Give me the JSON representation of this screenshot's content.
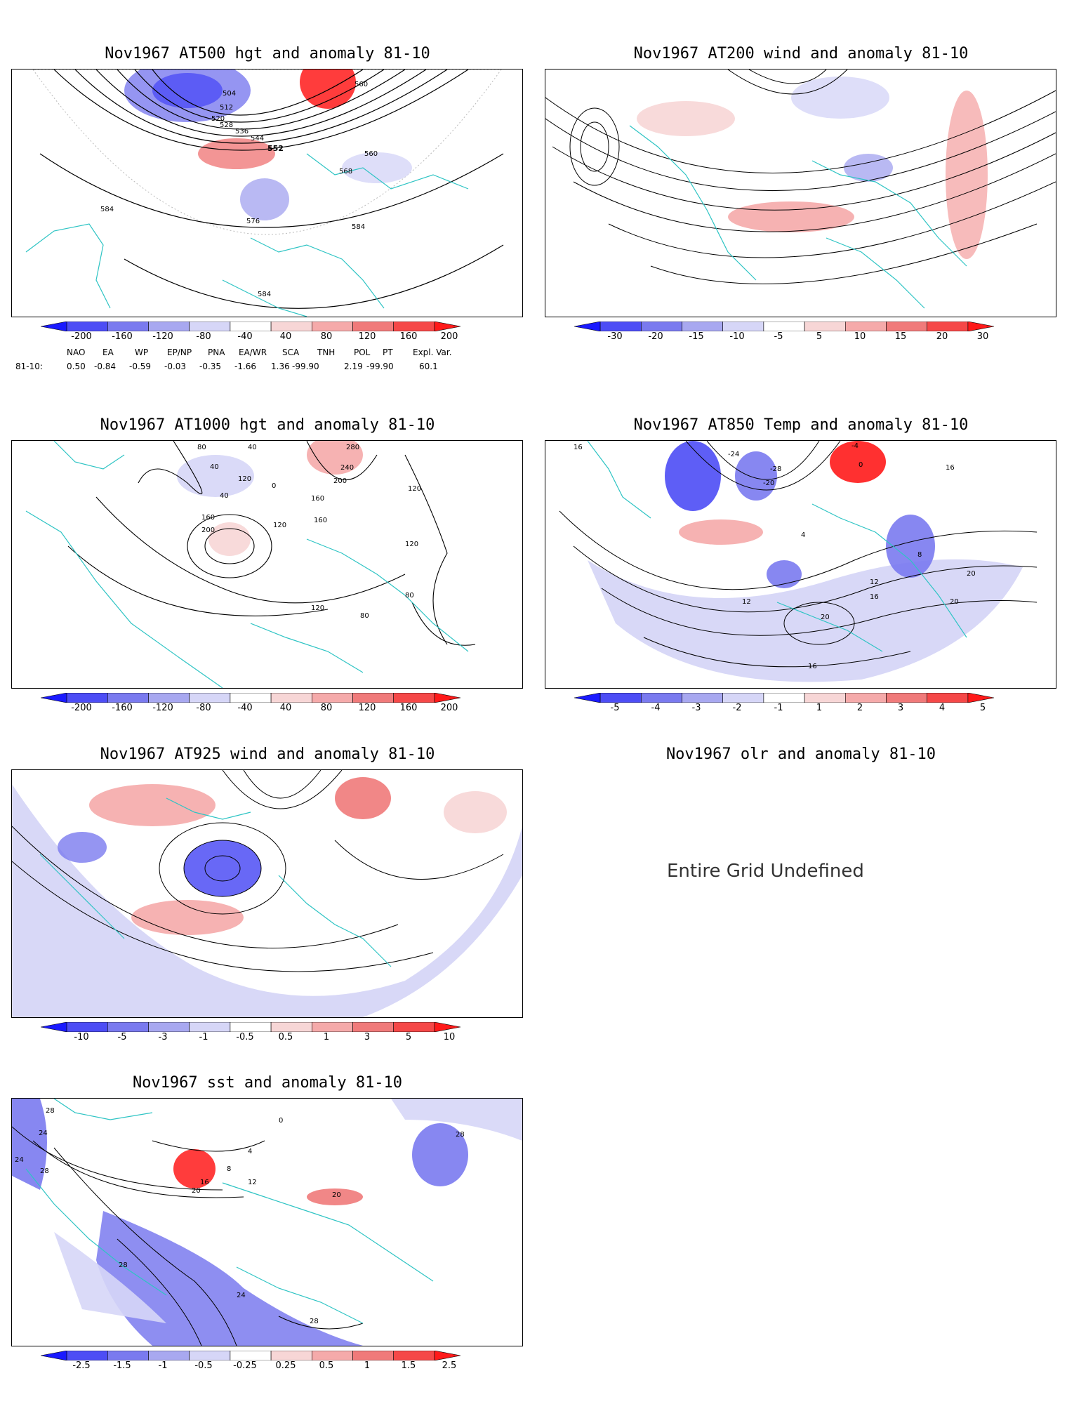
{
  "panels": [
    {
      "title": "Nov1967 AT500 hgt and anomaly 81-10",
      "colorbar": [
        "-200",
        "-160",
        "-120",
        "-80",
        "-40",
        "40",
        "80",
        "120",
        "160",
        "200"
      ],
      "contour_labels": [
        "504",
        "512",
        "520",
        "528",
        "536",
        "544",
        "552",
        "560",
        "568",
        "576",
        "584",
        "584",
        "584",
        "560"
      ]
    },
    {
      "title": "Nov1967 AT200 wind and anomaly 81-10",
      "colorbar": [
        "-30",
        "-20",
        "-15",
        "-10",
        "-5",
        "5",
        "10",
        "15",
        "20",
        "30"
      ]
    },
    {
      "title": "Nov1967 AT1000 hgt and anomaly 81-10",
      "colorbar": [
        "-200",
        "-160",
        "-120",
        "-80",
        "-40",
        "40",
        "80",
        "120",
        "160",
        "200"
      ],
      "contour_labels": [
        "80",
        "40",
        "40",
        "120",
        "40",
        "0",
        "280",
        "240",
        "200",
        "160",
        "160",
        "120",
        "120",
        "80",
        "80",
        "200",
        "160",
        "120",
        "120"
      ]
    },
    {
      "title": "Nov1967 AT850 Temp and anomaly 81-10",
      "colorbar": [
        "-5",
        "-4",
        "-3",
        "-2",
        "-1",
        "1",
        "2",
        "3",
        "4",
        "5"
      ],
      "contour_labels": [
        "16",
        "-24",
        "-28",
        "-20",
        "-4",
        "0",
        "16",
        "8",
        "4",
        "12",
        "12",
        "16",
        "20",
        "20",
        "20",
        "16"
      ]
    },
    {
      "title": "Nov1967 AT925 wind and anomaly 81-10",
      "colorbar": [
        "-10",
        "-5",
        "-3",
        "-1",
        "-0.5",
        "0.5",
        "1",
        "3",
        "5",
        "10"
      ]
    },
    {
      "title": "Nov1967 olr and anomaly 81-10",
      "message": "Entire Grid Undefined"
    },
    {
      "title": "Nov1967 sst and anomaly 81-10",
      "colorbar": [
        "-2.5",
        "-1.5",
        "-1",
        "-0.5",
        "-0.25",
        "0.25",
        "0.5",
        "1",
        "1.5",
        "2.5"
      ],
      "contour_labels": [
        "28",
        "24",
        "24",
        "28",
        "16",
        "20",
        "12",
        "8",
        "4",
        "0",
        "20",
        "28",
        "24",
        "28",
        "28"
      ]
    }
  ],
  "indices": {
    "headers": [
      "NAO",
      "EA",
      "WP",
      "EP/NP",
      "PNA",
      "EA/WR",
      "SCA",
      "TNH",
      "POL",
      "PT",
      "Expl. Var."
    ],
    "row_label": "81-10:",
    "values": [
      "0.50",
      "-0.84",
      "-0.59",
      "-0.03",
      "-0.35",
      "-1.66",
      "1.36",
      "-99.90",
      "2.19",
      "-99.90",
      "60.1"
    ]
  },
  "colors": {
    "coast": "#2ec4c4",
    "contour": "#000000",
    "blue_scale": [
      "#1a1aff",
      "#4d4df5",
      "#7a7aef",
      "#a8a8f0",
      "#d6d6f7"
    ],
    "red_scale": [
      "#f7d6d6",
      "#f5aaaa",
      "#f07a7a",
      "#f54848",
      "#ff1a1a"
    ]
  }
}
